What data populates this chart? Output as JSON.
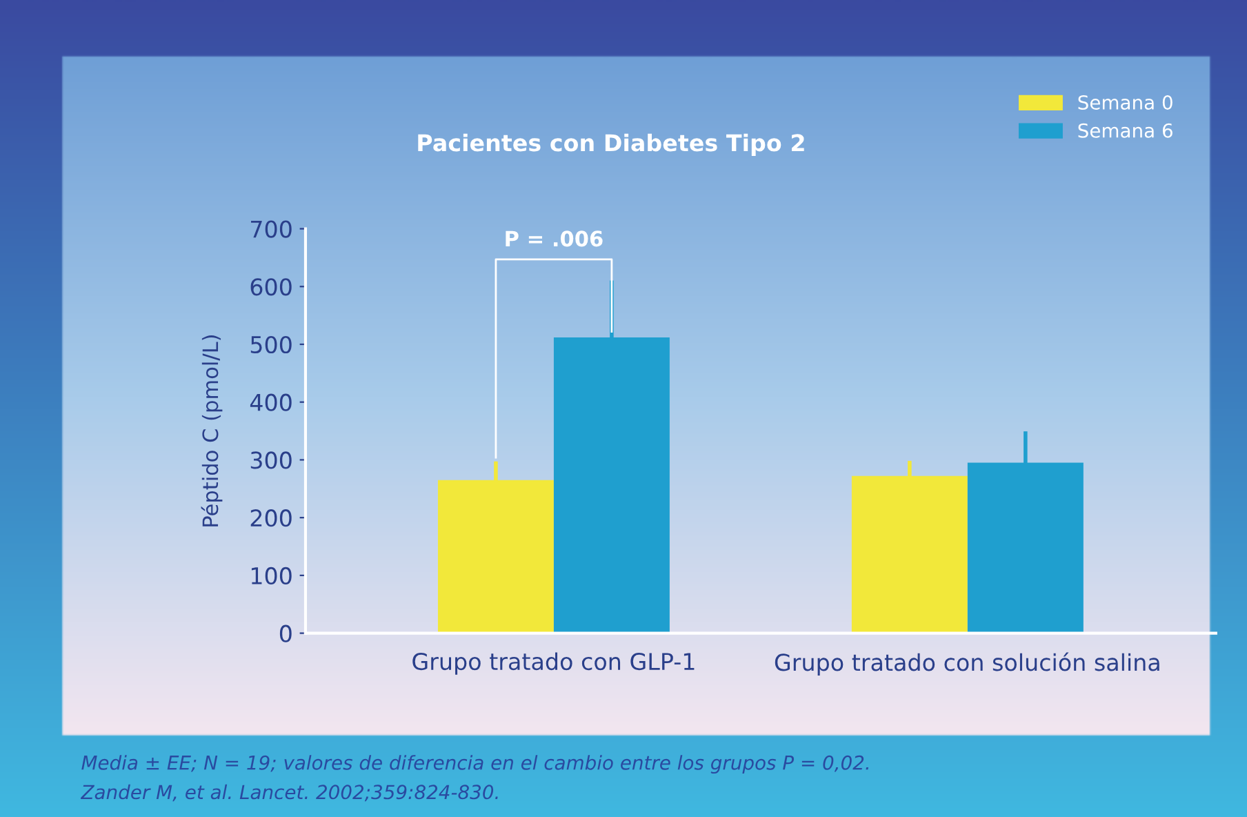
{
  "chart_data": {
    "type": "bar",
    "title": "Pacientes con Diabetes Tipo 2",
    "ylabel": "Péptido C (pmol/L)",
    "categories": [
      "Grupo tratado con GLP-1",
      "Grupo tratado con solución salina"
    ],
    "series": [
      {
        "name": "Semana 0",
        "color": "#f2e83a",
        "values": [
          265,
          272
        ],
        "errors": [
          [
            265,
            294
          ],
          [
            272,
            295
          ]
        ]
      },
      {
        "name": "Semana 6",
        "color": "#1f9fcf",
        "values": [
          512,
          295
        ],
        "errors": [
          [
            512,
            607
          ],
          [
            295,
            346
          ]
        ]
      }
    ],
    "ylim": [
      0,
      700
    ],
    "yticks": [
      0,
      100,
      200,
      300,
      400,
      500,
      600,
      700
    ],
    "grid": false,
    "legend": "top right",
    "annotations": [
      "P = .006",
      "Media ± EE; N = 19; valores de diferencia en el cambio entre los grupos P = 0,02.",
      "Zander M, et al. Lancet. 2002;359:824-830."
    ]
  }
}
